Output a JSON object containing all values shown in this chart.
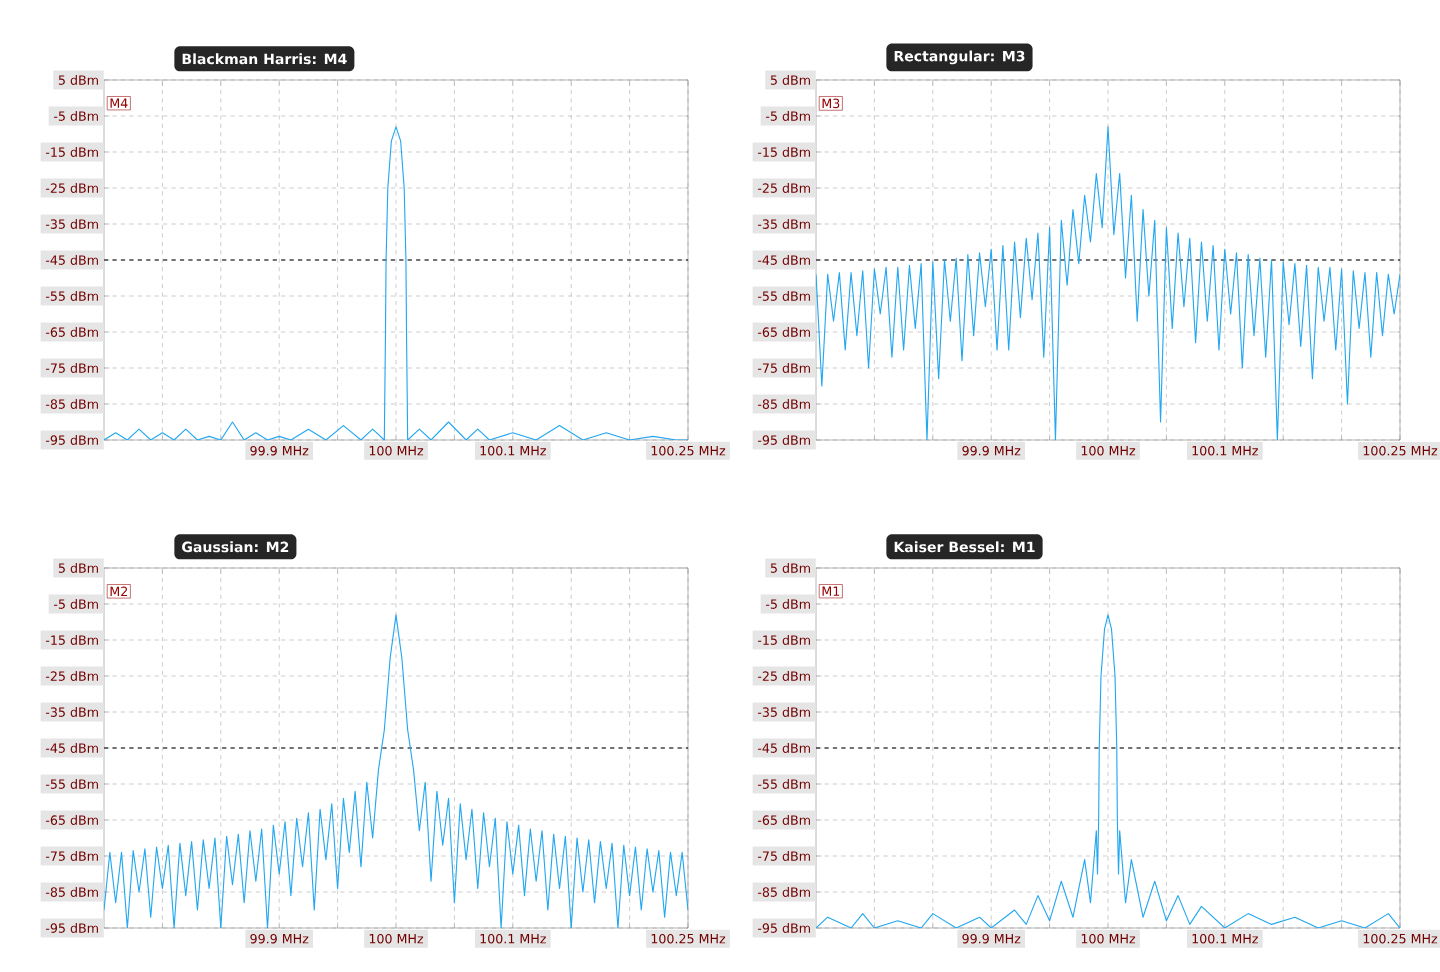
{
  "chart_data": [
    {
      "type": "line",
      "title": "Blackman Harris: M4",
      "annotations": [
        "M4"
      ],
      "grid": true,
      "x": [
        99.75,
        99.76,
        99.77,
        99.78,
        99.79,
        99.8,
        99.81,
        99.82,
        99.83,
        99.84,
        99.85,
        99.86,
        99.87,
        99.88,
        99.89,
        99.9,
        99.91,
        99.925,
        99.94,
        99.955,
        99.97,
        99.98,
        99.99,
        99.991,
        99.9915,
        99.993,
        99.996,
        100,
        100.004,
        100.007,
        100.0085,
        100.009,
        100.01,
        100.02,
        100.03,
        100.045,
        100.06,
        100.07,
        100.08,
        100.1,
        100.12,
        100.14,
        100.16,
        100.18,
        100.2,
        100.22,
        100.24,
        100.25
      ],
      "series": [
        {
          "color": "#22a7f0",
          "values": [
            -95,
            -93,
            -95,
            -92,
            -95,
            -93,
            -95,
            -92,
            -95,
            -94,
            -95,
            -90,
            -95,
            -93,
            -95,
            -94,
            -95,
            -92,
            -95,
            -91,
            -95,
            -92,
            -95,
            -65,
            -45,
            -25,
            -12,
            -8,
            -12,
            -25,
            -45,
            -65,
            -95,
            -92,
            -95,
            -90,
            -95,
            -92,
            -95,
            -93,
            -95,
            -91,
            -95,
            -93,
            -95,
            -94,
            -95,
            -95
          ]
        }
      ],
      "xlim": [
        99.75,
        100.25
      ],
      "ylim": [
        -95,
        5
      ],
      "xticks": [
        {
          "value": 99.8,
          "label": null
        },
        {
          "value": 99.85,
          "label": null
        },
        {
          "value": 99.9,
          "label": "99.9 MHz"
        },
        {
          "value": 99.95,
          "label": null
        },
        {
          "value": 100,
          "label": "100 MHz"
        },
        {
          "value": 100.05,
          "label": null
        },
        {
          "value": 100.1,
          "label": "100.1 MHz"
        },
        {
          "value": 100.15,
          "label": null
        },
        {
          "value": 100.2,
          "label": null
        },
        {
          "value": 100.25,
          "label": "100.25 MHz"
        }
      ],
      "yticks": [
        {
          "value": 5,
          "label": "5 dBm"
        },
        {
          "value": -5,
          "label": "-5 dBm"
        },
        {
          "value": -15,
          "label": "-15 dBm"
        },
        {
          "value": -25,
          "label": "-25 dBm"
        },
        {
          "value": -35,
          "label": "-35 dBm"
        },
        {
          "value": -45,
          "label": "-45 dBm"
        },
        {
          "value": -55,
          "label": "-55 dBm"
        },
        {
          "value": -65,
          "label": "-65 dBm"
        },
        {
          "value": -75,
          "label": "-75 dBm"
        },
        {
          "value": -85,
          "label": "-85 dBm"
        },
        {
          "value": -95,
          "label": "-95 dBm"
        }
      ],
      "ref_lines": [
        {
          "axis": "y",
          "value": -45,
          "color": "#000000",
          "line_style": "dashed"
        }
      ]
    },
    {
      "type": "line",
      "title": "Rectangular: M3",
      "annotations": [
        "M3"
      ],
      "grid": true,
      "x": [
        99.75,
        99.755,
        99.76,
        99.765,
        99.77,
        99.775,
        99.78,
        99.785,
        99.79,
        99.795,
        99.8,
        99.805,
        99.81,
        99.815,
        99.82,
        99.825,
        99.83,
        99.835,
        99.84,
        99.845,
        99.85,
        99.855,
        99.86,
        99.865,
        99.87,
        99.875,
        99.88,
        99.885,
        99.89,
        99.895,
        99.9,
        99.905,
        99.91,
        99.915,
        99.92,
        99.925,
        99.93,
        99.935,
        99.94,
        99.945,
        99.95,
        99.955,
        99.96,
        99.965,
        99.97,
        99.975,
        99.98,
        99.985,
        99.99,
        99.995,
        100,
        100.005,
        100.01,
        100.015,
        100.02,
        100.025,
        100.03,
        100.035,
        100.04,
        100.045,
        100.05,
        100.055,
        100.06,
        100.065,
        100.07,
        100.075,
        100.08,
        100.085,
        100.09,
        100.095,
        100.1,
        100.105,
        100.11,
        100.115,
        100.12,
        100.125,
        100.13,
        100.135,
        100.14,
        100.145,
        100.15,
        100.155,
        100.16,
        100.165,
        100.17,
        100.175,
        100.18,
        100.185,
        100.19,
        100.195,
        100.2,
        100.205,
        100.21,
        100.215,
        100.22,
        100.225,
        100.23,
        100.235,
        100.24,
        100.245,
        100.25
      ],
      "series": [
        {
          "color": "#22a7f0",
          "values": [
            -49,
            -80,
            -49,
            -62,
            -48.5,
            -70,
            -48.5,
            -66,
            -48,
            -75,
            -47.5,
            -60,
            -47,
            -72,
            -47,
            -70,
            -46.5,
            -64,
            -46,
            -95,
            -45.5,
            -78,
            -45,
            -62,
            -44.5,
            -73,
            -43.5,
            -66,
            -43,
            -58,
            -42,
            -70,
            -41,
            -70,
            -40,
            -61,
            -39,
            -56,
            -37.5,
            -72,
            -36,
            -95,
            -34,
            -52,
            -31,
            -46,
            -27,
            -40,
            -21,
            -36,
            -8,
            -38,
            -21,
            -50,
            -27,
            -62,
            -31,
            -55,
            -34,
            -90,
            -36,
            -64,
            -37.5,
            -58,
            -39,
            -68,
            -40,
            -62,
            -41,
            -70,
            -42,
            -60,
            -43,
            -75,
            -43.5,
            -66,
            -44.5,
            -72,
            -45,
            -95,
            -45.5,
            -63,
            -46,
            -69,
            -46.5,
            -78,
            -47,
            -62,
            -47,
            -70,
            -47.5,
            -85,
            -48,
            -64,
            -48.5,
            -72,
            -48.5,
            -66,
            -49,
            -60,
            -49
          ]
        }
      ],
      "xlim": [
        99.75,
        100.25
      ],
      "ylim": [
        -95,
        5
      ],
      "xticks": [
        {
          "value": 99.8,
          "label": null
        },
        {
          "value": 99.85,
          "label": null
        },
        {
          "value": 99.9,
          "label": "99.9 MHz"
        },
        {
          "value": 99.95,
          "label": null
        },
        {
          "value": 100,
          "label": "100 MHz"
        },
        {
          "value": 100.05,
          "label": null
        },
        {
          "value": 100.1,
          "label": "100.1 MHz"
        },
        {
          "value": 100.15,
          "label": null
        },
        {
          "value": 100.2,
          "label": null
        },
        {
          "value": 100.25,
          "label": "100.25 MHz"
        }
      ],
      "yticks": [
        {
          "value": 5,
          "label": "5 dBm"
        },
        {
          "value": -5,
          "label": "-5 dBm"
        },
        {
          "value": -15,
          "label": "-15 dBm"
        },
        {
          "value": -25,
          "label": "-25 dBm"
        },
        {
          "value": -35,
          "label": "-35 dBm"
        },
        {
          "value": -45,
          "label": "-45 dBm"
        },
        {
          "value": -55,
          "label": "-55 dBm"
        },
        {
          "value": -65,
          "label": "-65 dBm"
        },
        {
          "value": -75,
          "label": "-75 dBm"
        },
        {
          "value": -85,
          "label": "-85 dBm"
        },
        {
          "value": -95,
          "label": "-95 dBm"
        }
      ],
      "ref_lines": [
        {
          "axis": "y",
          "value": -45,
          "color": "#000000",
          "line_style": "dashed"
        }
      ]
    },
    {
      "type": "line",
      "title": "Gaussian: M2",
      "annotations": [
        "M2"
      ],
      "grid": true,
      "x": [
        99.75,
        99.755,
        99.76,
        99.765,
        99.77,
        99.775,
        99.78,
        99.785,
        99.79,
        99.795,
        99.8,
        99.805,
        99.81,
        99.815,
        99.82,
        99.825,
        99.83,
        99.835,
        99.84,
        99.845,
        99.85,
        99.855,
        99.86,
        99.865,
        99.87,
        99.875,
        99.88,
        99.885,
        99.89,
        99.895,
        99.9,
        99.905,
        99.91,
        99.915,
        99.92,
        99.925,
        99.93,
        99.935,
        99.94,
        99.945,
        99.95,
        99.955,
        99.96,
        99.965,
        99.97,
        99.975,
        99.98,
        99.985,
        99.99,
        99.995,
        100,
        100.005,
        100.01,
        100.015,
        100.02,
        100.025,
        100.03,
        100.035,
        100.04,
        100.045,
        100.05,
        100.055,
        100.06,
        100.065,
        100.07,
        100.075,
        100.08,
        100.085,
        100.09,
        100.095,
        100.1,
        100.105,
        100.11,
        100.115,
        100.12,
        100.125,
        100.13,
        100.135,
        100.14,
        100.145,
        100.15,
        100.155,
        100.16,
        100.165,
        100.17,
        100.175,
        100.18,
        100.185,
        100.19,
        100.195,
        100.2,
        100.205,
        100.21,
        100.215,
        100.22,
        100.225,
        100.23,
        100.235,
        100.24,
        100.245,
        100.25
      ],
      "series": [
        {
          "color": "#22a7f0",
          "values": [
            -90,
            -74,
            -88,
            -74,
            -95,
            -73.5,
            -85,
            -73,
            -92,
            -72.5,
            -84,
            -72,
            -95,
            -71.5,
            -86,
            -71,
            -90,
            -70.5,
            -84,
            -70,
            -95,
            -69.5,
            -83,
            -69,
            -88,
            -68,
            -82,
            -67.5,
            -95,
            -66.5,
            -80,
            -65.5,
            -86,
            -64.5,
            -78,
            -63,
            -90,
            -62,
            -76,
            -60.5,
            -84,
            -59,
            -74,
            -57,
            -78,
            -54.5,
            -70,
            -51,
            -40,
            -20,
            -8,
            -20,
            -40,
            -51,
            -68,
            -54.5,
            -82,
            -57,
            -72,
            -59,
            -88,
            -60.5,
            -76,
            -62,
            -84,
            -63,
            -78,
            -64.5,
            -95,
            -65.5,
            -80,
            -66.5,
            -86,
            -67.5,
            -82,
            -68,
            -90,
            -69,
            -84,
            -69.5,
            -95,
            -70,
            -85,
            -70.5,
            -88,
            -71,
            -84,
            -71.5,
            -95,
            -72,
            -86,
            -72.5,
            -90,
            -73,
            -85,
            -73.5,
            -92,
            -74,
            -86,
            -74,
            -90
          ]
        }
      ],
      "xlim": [
        99.75,
        100.25
      ],
      "ylim": [
        -95,
        5
      ],
      "xticks": [
        {
          "value": 99.8,
          "label": null
        },
        {
          "value": 99.85,
          "label": null
        },
        {
          "value": 99.9,
          "label": "99.9 MHz"
        },
        {
          "value": 99.95,
          "label": null
        },
        {
          "value": 100,
          "label": "100 MHz"
        },
        {
          "value": 100.05,
          "label": null
        },
        {
          "value": 100.1,
          "label": "100.1 MHz"
        },
        {
          "value": 100.15,
          "label": null
        },
        {
          "value": 100.2,
          "label": null
        },
        {
          "value": 100.25,
          "label": "100.25 MHz"
        }
      ],
      "yticks": [
        {
          "value": 5,
          "label": "5 dBm"
        },
        {
          "value": -5,
          "label": "-5 dBm"
        },
        {
          "value": -15,
          "label": "-15 dBm"
        },
        {
          "value": -25,
          "label": "-25 dBm"
        },
        {
          "value": -35,
          "label": "-35 dBm"
        },
        {
          "value": -45,
          "label": "-45 dBm"
        },
        {
          "value": -55,
          "label": "-55 dBm"
        },
        {
          "value": -65,
          "label": "-65 dBm"
        },
        {
          "value": -75,
          "label": "-75 dBm"
        },
        {
          "value": -85,
          "label": "-85 dBm"
        },
        {
          "value": -95,
          "label": "-95 dBm"
        }
      ],
      "ref_lines": [
        {
          "axis": "y",
          "value": -45,
          "color": "#000000",
          "line_style": "dashed"
        }
      ]
    },
    {
      "type": "line",
      "title": "Kaiser Bessel: M1",
      "annotations": [
        "M1"
      ],
      "grid": true,
      "x": [
        99.75,
        99.76,
        99.78,
        99.79,
        99.8,
        99.82,
        99.84,
        99.85,
        99.87,
        99.89,
        99.9,
        99.92,
        99.93,
        99.94,
        99.95,
        99.96,
        99.97,
        99.98,
        99.985,
        99.99,
        99.991,
        99.992,
        99.9925,
        99.994,
        99.997,
        100,
        100.003,
        100.006,
        100.0075,
        100.008,
        100.009,
        100.01,
        100.015,
        100.02,
        100.03,
        100.04,
        100.05,
        100.06,
        100.07,
        100.08,
        100.1,
        100.12,
        100.14,
        100.16,
        100.18,
        100.2,
        100.22,
        100.24,
        100.25
      ],
      "series": [
        {
          "color": "#22a7f0",
          "values": [
            -95,
            -92,
            -95,
            -91,
            -95,
            -93,
            -95,
            -91,
            -95,
            -92,
            -95,
            -90,
            -94,
            -86,
            -93,
            -82,
            -92,
            -76,
            -88,
            -68,
            -80,
            -65,
            -45,
            -25,
            -12,
            -8,
            -12,
            -25,
            -45,
            -65,
            -80,
            -68,
            -88,
            -76,
            -92,
            -82,
            -93,
            -86,
            -94,
            -89,
            -95,
            -91,
            -94,
            -92,
            -95,
            -93,
            -95,
            -91,
            -95
          ]
        }
      ],
      "xlim": [
        99.75,
        100.25
      ],
      "ylim": [
        -95,
        5
      ],
      "xticks": [
        {
          "value": 99.8,
          "label": null
        },
        {
          "value": 99.85,
          "label": null
        },
        {
          "value": 99.9,
          "label": "99.9 MHz"
        },
        {
          "value": 99.95,
          "label": null
        },
        {
          "value": 100,
          "label": "100 MHz"
        },
        {
          "value": 100.05,
          "label": null
        },
        {
          "value": 100.1,
          "label": "100.1 MHz"
        },
        {
          "value": 100.15,
          "label": null
        },
        {
          "value": 100.2,
          "label": null
        },
        {
          "value": 100.25,
          "label": "100.25 MHz"
        }
      ],
      "yticks": [
        {
          "value": 5,
          "label": "5 dBm"
        },
        {
          "value": -5,
          "label": "-5 dBm"
        },
        {
          "value": -15,
          "label": "-15 dBm"
        },
        {
          "value": -25,
          "label": "-25 dBm"
        },
        {
          "value": -35,
          "label": "-35 dBm"
        },
        {
          "value": -45,
          "label": "-45 dBm"
        },
        {
          "value": -55,
          "label": "-55 dBm"
        },
        {
          "value": -65,
          "label": "-65 dBm"
        },
        {
          "value": -75,
          "label": "-75 dBm"
        },
        {
          "value": -85,
          "label": "-85 dBm"
        },
        {
          "value": -95,
          "label": "-95 dBm"
        }
      ],
      "ref_lines": [
        {
          "axis": "y",
          "value": -45,
          "color": "#000000",
          "line_style": "dashed"
        }
      ]
    }
  ]
}
